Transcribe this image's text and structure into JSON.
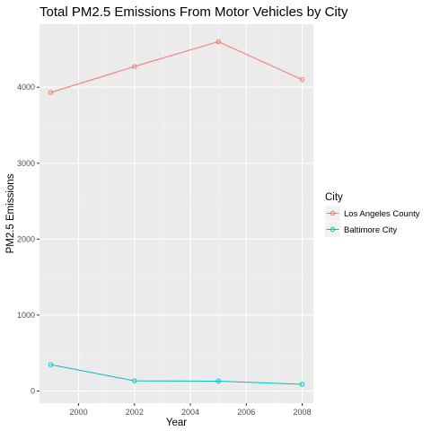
{
  "chart_data": {
    "type": "line",
    "title": "Total PM2.5 Emissions From Motor Vehicles by City",
    "xlabel": "Year",
    "ylabel": "PM2.5 Emissions",
    "x": [
      1999,
      2002,
      2005,
      2008
    ],
    "xlim": [
      1998.6,
      2008.4
    ],
    "ylim": [
      -160,
      4830
    ],
    "xticks": [
      2000,
      2002,
      2004,
      2006,
      2008
    ],
    "yticks": [
      0,
      1000,
      2000,
      3000,
      4000
    ],
    "xtick_labels": [
      "2000",
      "2002",
      "2004",
      "2006",
      "2008"
    ],
    "ytick_labels": [
      "0",
      "1000",
      "2000",
      "3000",
      "4000"
    ],
    "grid": true,
    "background": "#ebebeb",
    "legend": {
      "title": "City",
      "position": "right"
    },
    "series": [
      {
        "name": "Los Angeles County",
        "color": "#f8766d",
        "values": [
          3931,
          4274,
          4601,
          4101
        ]
      },
      {
        "name": "Baltimore City",
        "color": "#00bfc4",
        "values": [
          347,
          134,
          130,
          88
        ]
      }
    ]
  }
}
